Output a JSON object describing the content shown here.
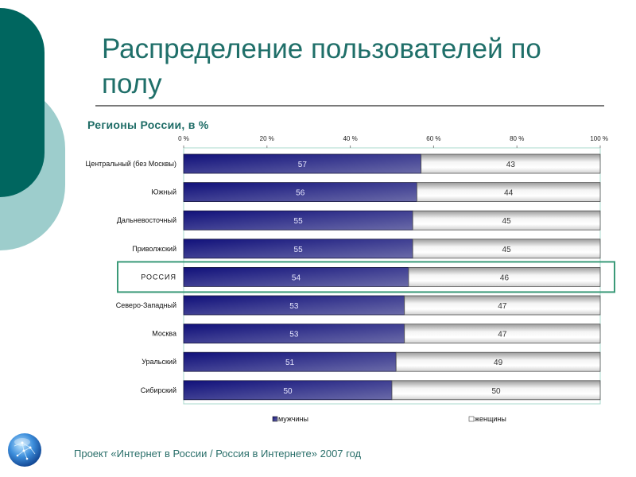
{
  "slide": {
    "title": "Распределение пользователей по полу",
    "footer": "Проект «Интернет в России / Россия в Интернете»  2007 год",
    "colors": {
      "accent_dark": "#00665f",
      "accent_light": "#9dcdcc",
      "title": "#1f6f69",
      "men": "#2a2a8a",
      "women": "#e0e0e0",
      "highlight": "#3a9a78"
    }
  },
  "chart_data": {
    "type": "bar",
    "orientation": "horizontal",
    "stacked": "percent",
    "title": "Регионы России, в %",
    "xlabel": "",
    "ylabel": "",
    "xlim": [
      0,
      100
    ],
    "x_ticks": [
      "0 %",
      "20 %",
      "40 %",
      "60 %",
      "80 %",
      "100 %"
    ],
    "x_tick_values": [
      0,
      20,
      40,
      60,
      80,
      100
    ],
    "categories": [
      "Центральный (без Москвы)",
      "Южный",
      "Дальневосточный",
      "Приволжский",
      "РОССИЯ",
      "Северо-Западный",
      "Москва",
      "Уральский",
      "Сибирский"
    ],
    "highlighted_category": "РОССИЯ",
    "series": [
      {
        "name": "мужчины",
        "values": [
          57,
          56,
          55,
          55,
          54,
          53,
          53,
          51,
          50
        ]
      },
      {
        "name": "женщины",
        "values": [
          43,
          44,
          45,
          45,
          46,
          47,
          47,
          49,
          50
        ]
      }
    ],
    "legend_position": "bottom",
    "grid": false
  }
}
